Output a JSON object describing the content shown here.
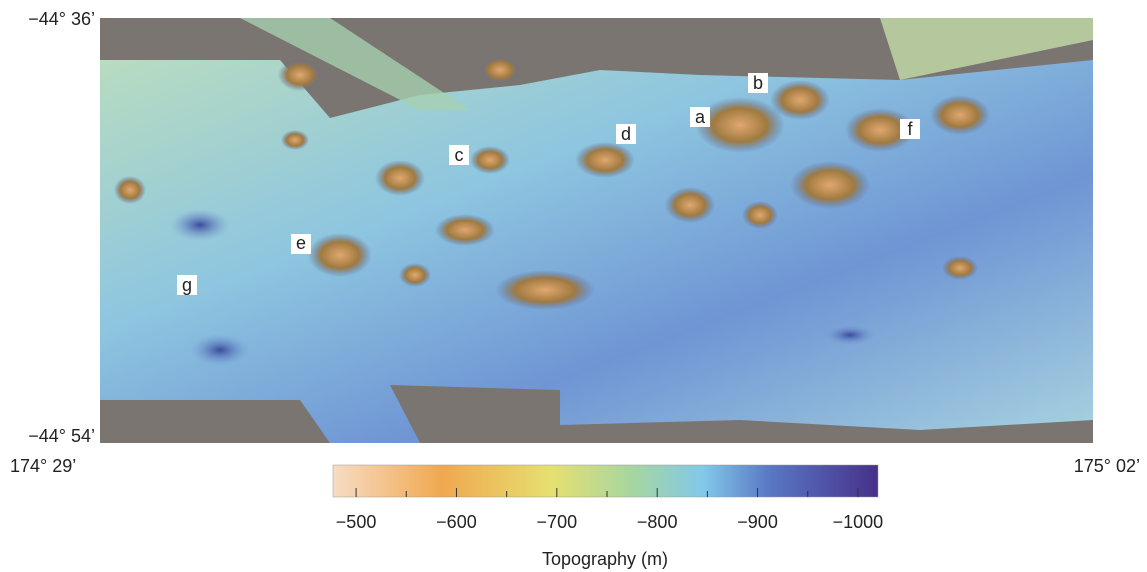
{
  "map": {
    "corner_labels": {
      "top_left": "−44° 36’",
      "bottom_left": "−44° 54’",
      "bottom_left_lon": "174° 29’",
      "bottom_right_lon": "175° 02’"
    },
    "labels": [
      "a",
      "b",
      "c",
      "d",
      "e",
      "f",
      "g"
    ],
    "colorbar": {
      "label": "Topography (m)",
      "range": [
        -477,
        -1020
      ],
      "ticks": [
        {
          "value": -500,
          "label": "−500"
        },
        {
          "value": -600,
          "label": "−600"
        },
        {
          "value": -700,
          "label": "−700"
        },
        {
          "value": -800,
          "label": "−800"
        },
        {
          "value": -900,
          "label": "−900"
        },
        {
          "value": -1000,
          "label": "−1000"
        }
      ],
      "minor_ticks": [
        -550,
        -650,
        -750,
        -850,
        -950
      ]
    }
  }
}
